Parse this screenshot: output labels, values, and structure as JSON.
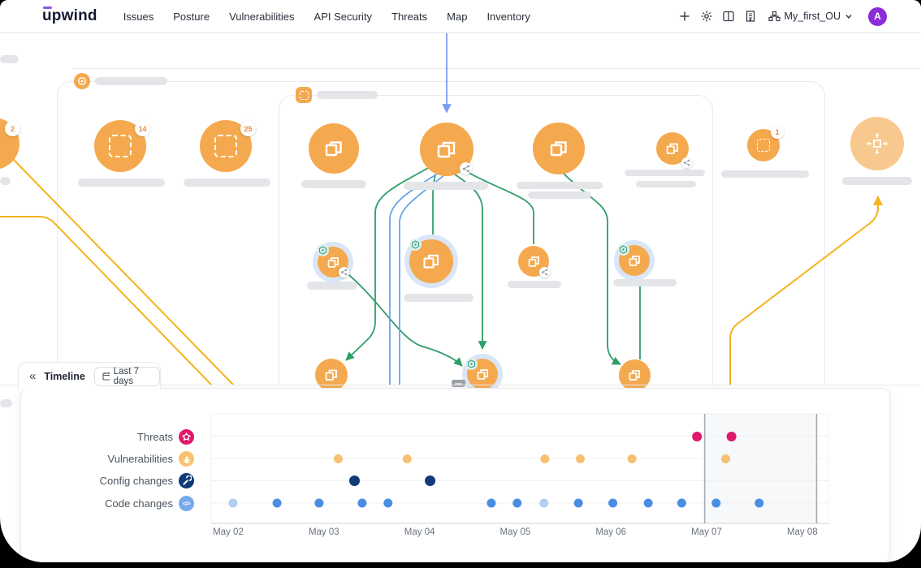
{
  "header": {
    "logo_text": "upwind",
    "nav_items": [
      "Issues",
      "Posture",
      "Vulnerabilities",
      "API Security",
      "Threats",
      "Map",
      "Inventory"
    ],
    "org_label": "My_first_OU",
    "avatar_initial": "A"
  },
  "map": {
    "badges": {
      "left_edge_node": "2",
      "cluster_a": "14",
      "cluster_b": "25",
      "right_small_node": "1"
    }
  },
  "timeline": {
    "collapse_glyph": "«",
    "title": "Timeline",
    "range_label": "Last 7 days"
  },
  "chart_data": {
    "type": "scatter",
    "title": "",
    "x_unit": "day of May (fractional position along x axis)",
    "x_ticks": [
      {
        "label": "May 02",
        "day": 2
      },
      {
        "label": "May 03",
        "day": 3
      },
      {
        "label": "May 04",
        "day": 4
      },
      {
        "label": "May 05",
        "day": 5
      },
      {
        "label": "May 06",
        "day": 6
      },
      {
        "label": "May 07",
        "day": 7
      },
      {
        "label": "May 08",
        "day": 8
      }
    ],
    "rows": [
      {
        "key": "threats",
        "label": "Threats",
        "icon": "threat-virus-icon",
        "color": "#E0196B"
      },
      {
        "key": "vulnerabilities",
        "label": "Vulnerabilities",
        "icon": "vulnerability-bug-icon",
        "color": "#F6C171"
      },
      {
        "key": "config_changes",
        "label": "Config changes",
        "icon": "wrench-icon",
        "color": "#103A78"
      },
      {
        "key": "code_changes",
        "label": "Code changes",
        "icon": "code-icon",
        "color": "#76A9EA"
      }
    ],
    "points": {
      "threats": [
        6.9,
        7.26
      ],
      "vulnerabilities": [
        3.15,
        3.87,
        5.31,
        5.68,
        6.22,
        7.2
      ],
      "config_changes": [
        3.32,
        4.11
      ],
      "code_changes": [
        {
          "day": 2.05,
          "muted": true
        },
        2.51,
        2.95,
        3.4,
        3.67,
        4.75,
        5.02,
        {
          "day": 5.3,
          "muted": true
        },
        5.66,
        6.02,
        6.39,
        6.74,
        7.1,
        7.55
      ]
    },
    "selection": {
      "from_day": 6.98,
      "to_day": 8.15
    },
    "colors": {
      "threats": "#E0196B",
      "vulnerabilities": "#F6C171",
      "config_changes": "#103A78",
      "code_changes": "#4A8EE2",
      "code_changes_muted": "#B3CFF2",
      "selection_border": "#A7ADB7",
      "selection_fill": "#F7F8F9",
      "grid": "#EFF0F2",
      "axis": "#D8DADD"
    },
    "grid": true,
    "legend_position": "left-rows"
  }
}
